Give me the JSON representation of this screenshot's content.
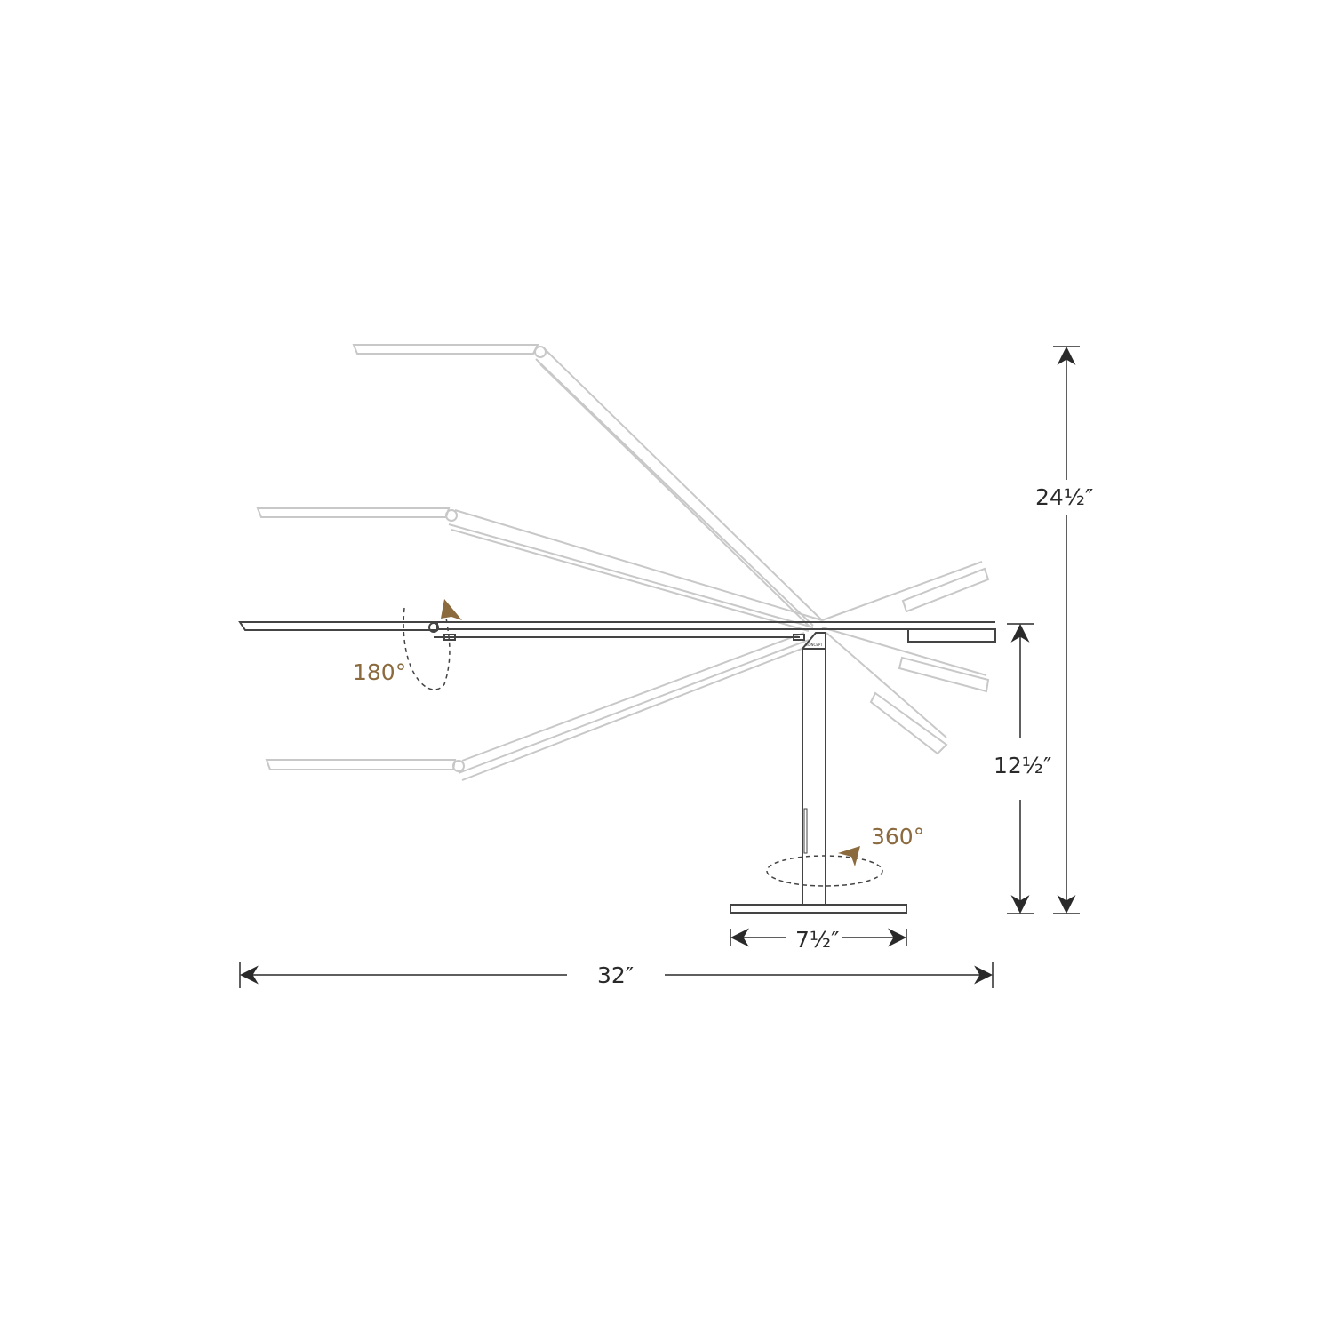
{
  "colors": {
    "accent": "#8b6a3e",
    "line": "#444444",
    "ghost": "#c8c8c8",
    "dimension": "#2a2a2a"
  },
  "dimensions": {
    "total_height": "24½″",
    "stem_height": "12½″",
    "base_width": "7½″",
    "total_width": "32″"
  },
  "rotations": {
    "head": "180°",
    "base": "360°"
  },
  "logo": "KONCEPT"
}
